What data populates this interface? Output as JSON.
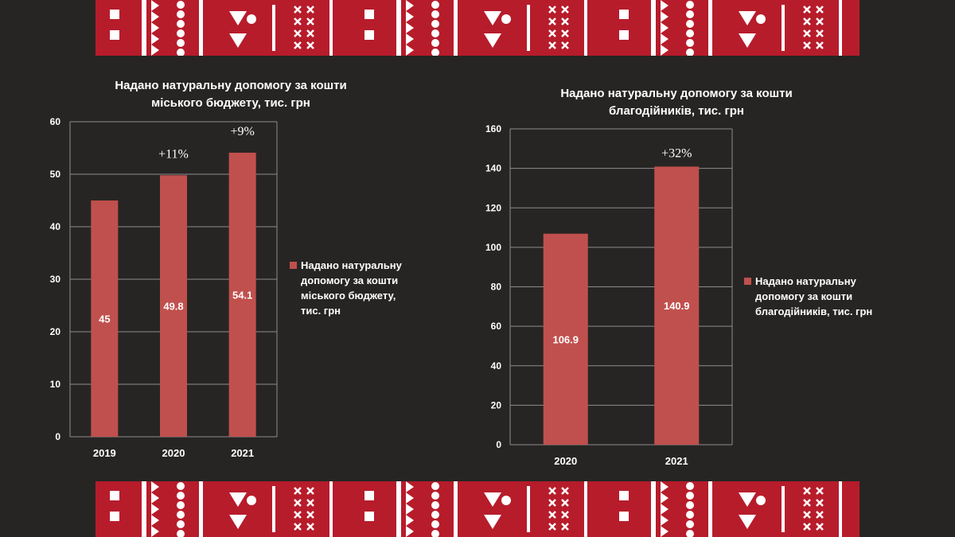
{
  "colors": {
    "background": "#272524",
    "ornament_band": "#b71c2b",
    "ornament_pattern": "#ffffff",
    "bar": "#c0504d",
    "grid": "#8c8c8c",
    "text": "#ffffff"
  },
  "chart_data": [
    {
      "type": "bar",
      "title": "Надано натуральну допомогу за кошти міського бюджету, тис. грн",
      "title_lines": [
        "Надано натуральну допомогу за кошти",
        "міського бюджету, тис. грн"
      ],
      "categories": [
        "2019",
        "2020",
        "2021"
      ],
      "series": [
        {
          "name": "Надано натуральну допомогу за кошти міського бюджету, тис. грн",
          "values": [
            45,
            49.8,
            54.1
          ],
          "data_labels": [
            "45",
            "49.8",
            "54.1"
          ]
        }
      ],
      "annotations": [
        "",
        "+11%",
        "+9%"
      ],
      "ylim": [
        0,
        60
      ],
      "yticks": [
        0,
        10,
        20,
        30,
        40,
        50,
        60
      ],
      "ytick_labels": [
        "0",
        "10",
        "20",
        "30",
        "40",
        "50",
        "60"
      ],
      "grid": true,
      "legend_position": "right",
      "legend_lines": [
        "Надано натуральну",
        "допомогу за кошти",
        "міського бюджету,",
        "тис. грн"
      ]
    },
    {
      "type": "bar",
      "title": "Надано натуральну допомогу за кошти благодійників, тис. грн",
      "title_lines": [
        "Надано натуральну допомогу за кошти",
        "благодійників, тис. грн"
      ],
      "categories": [
        "2020",
        "2021"
      ],
      "series": [
        {
          "name": "Надано натуральну допомогу за кошти благодійників, тис. грн",
          "values": [
            106.9,
            140.9
          ],
          "data_labels": [
            "106.9",
            "140.9"
          ]
        }
      ],
      "annotations": [
        "",
        "+32%"
      ],
      "ylim": [
        0,
        160
      ],
      "yticks": [
        0,
        20,
        40,
        60,
        80,
        100,
        120,
        140,
        160
      ],
      "ytick_labels": [
        "0",
        "20",
        "40",
        "60",
        "80",
        "100",
        "120",
        "140",
        "160"
      ],
      "grid": true,
      "legend_position": "right",
      "legend_lines": [
        "Надано натуральну",
        "допомогу за кошти",
        "благодійників, тис. грн"
      ]
    }
  ]
}
